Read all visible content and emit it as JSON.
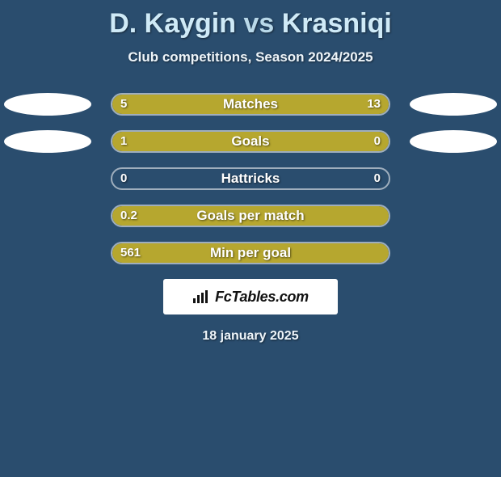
{
  "title": {
    "left_player": "D. Kaygin",
    "vs": "vs",
    "right_player": "Krasniqi"
  },
  "subtitle": "Club competitions, Season 2024/2025",
  "track": {
    "border_color": "rgba(255,255,255,0.55)",
    "background_color": "transparent"
  },
  "colors": {
    "page_bg": "#2a4d6e",
    "left_bar": "#b6a72f",
    "right_bar": "#b6a72f",
    "badge_bg": "#ffffff",
    "text_shadow": "rgba(0,0,0,0.55)"
  },
  "typography": {
    "title_fontsize": 34,
    "subtitle_fontsize": 17,
    "stat_label_fontsize": 17,
    "value_fontsize": 15,
    "brand_fontsize": 18,
    "date_fontsize": 16
  },
  "stats": [
    {
      "label": "Matches",
      "left_value": "5",
      "right_value": "13",
      "left_pct": 28,
      "right_pct": 72,
      "show_left_badge": true,
      "show_right_badge": true
    },
    {
      "label": "Goals",
      "left_value": "1",
      "right_value": "0",
      "left_pct": 77,
      "right_pct": 23,
      "show_left_badge": true,
      "show_right_badge": true
    },
    {
      "label": "Hattricks",
      "left_value": "0",
      "right_value": "0",
      "left_pct": 0,
      "right_pct": 0,
      "show_left_badge": false,
      "show_right_badge": false
    },
    {
      "label": "Goals per match",
      "left_value": "0.2",
      "right_value": "",
      "left_pct": 100,
      "right_pct": 0,
      "show_left_badge": false,
      "show_right_badge": false
    },
    {
      "label": "Min per goal",
      "left_value": "561",
      "right_value": "",
      "left_pct": 100,
      "right_pct": 0,
      "show_left_badge": false,
      "show_right_badge": false
    }
  ],
  "brand": {
    "text": "FcTables.com"
  },
  "date": "18 january 2025"
}
